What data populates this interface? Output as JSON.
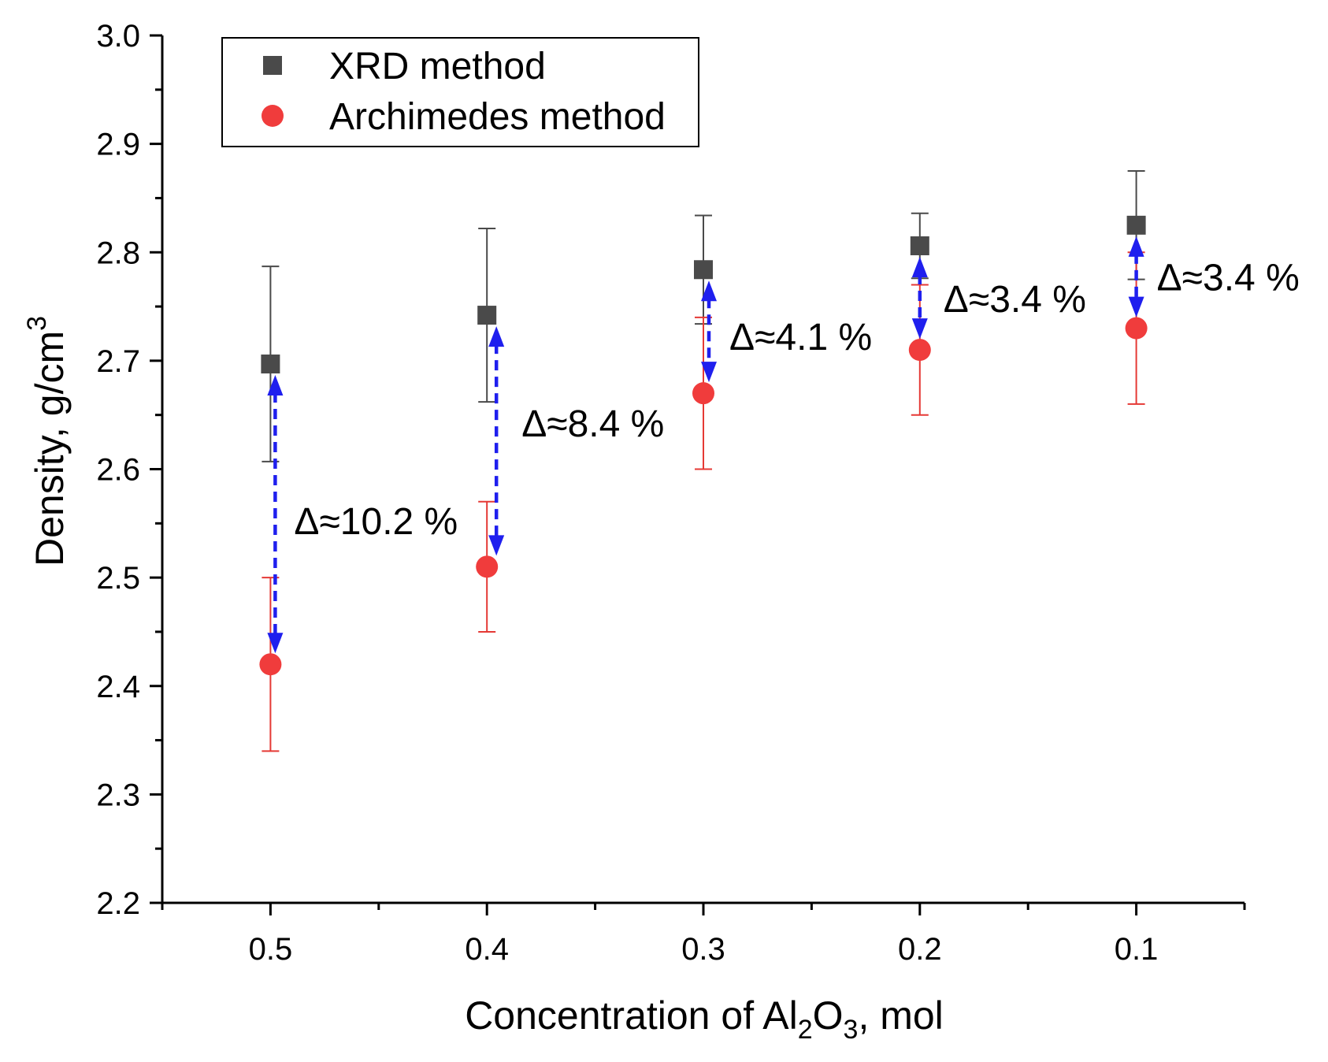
{
  "chart_data": {
    "type": "scatter",
    "title": "",
    "xlabel": {
      "prefix": "Concentration of Al",
      "sub1": "2",
      "mid": "O",
      "sub2": "3",
      "suffix": ", mol"
    },
    "ylabel": {
      "prefix": "Density, g/cm",
      "sup": "3"
    },
    "xlim": [
      0.55,
      0.05
    ],
    "ylim": [
      2.2,
      3.0
    ],
    "x_ticks": [
      0.5,
      0.4,
      0.3,
      0.2,
      0.1
    ],
    "x_tick_labels": [
      "0.5",
      "0.4",
      "0.3",
      "0.2",
      "0.1"
    ],
    "x_minor_ticks": [
      0.55,
      0.45,
      0.35,
      0.25,
      0.15,
      0.05
    ],
    "y_ticks": [
      2.2,
      2.3,
      2.4,
      2.5,
      2.6,
      2.7,
      2.8,
      2.9,
      3.0
    ],
    "y_tick_labels": [
      "2.2",
      "2.3",
      "2.4",
      "2.5",
      "2.6",
      "2.7",
      "2.8",
      "2.9",
      "3.0"
    ],
    "y_minor_ticks": [
      2.25,
      2.35,
      2.45,
      2.55,
      2.65,
      2.75,
      2.85,
      2.95
    ],
    "legend_position": "top-left",
    "series": [
      {
        "name": "XRD method",
        "marker": "square",
        "color": "#4a4a4a",
        "error_color": "#4a4a4a",
        "x": [
          0.5,
          0.4,
          0.3,
          0.2,
          0.1
        ],
        "y": [
          2.697,
          2.742,
          2.784,
          2.806,
          2.825
        ],
        "yerr": [
          0.09,
          0.08,
          0.05,
          0.03,
          0.05
        ]
      },
      {
        "name": "Archimedes method",
        "marker": "circle",
        "color": "#f03c3c",
        "error_color": "#e53935",
        "x": [
          0.5,
          0.4,
          0.3,
          0.2,
          0.1
        ],
        "y": [
          2.42,
          2.51,
          2.67,
          2.71,
          2.73
        ],
        "yerr": [
          0.08,
          0.06,
          0.07,
          0.06,
          0.07
        ]
      }
    ],
    "arrow_color": "#1f1fee",
    "annotations": [
      {
        "text": "Δ≈10.2 %",
        "x": 0.5
      },
      {
        "text": "Δ≈8.4 %",
        "x": 0.4
      },
      {
        "text": "Δ≈4.1 %",
        "x": 0.3
      },
      {
        "text": "Δ≈3.4 %",
        "x": 0.2
      },
      {
        "text": "Δ≈3.4 %",
        "x": 0.1
      }
    ]
  }
}
